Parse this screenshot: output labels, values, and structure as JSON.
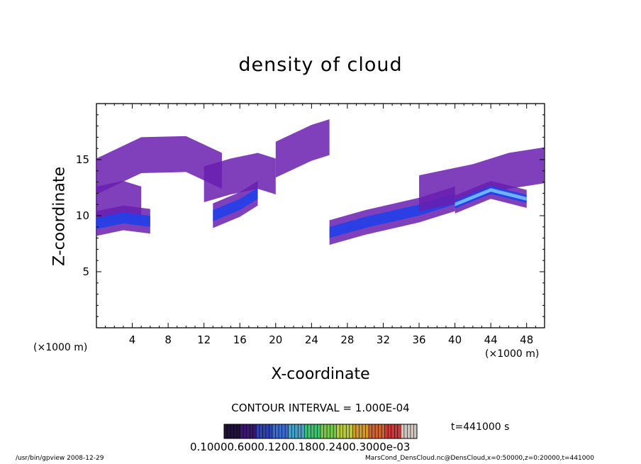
{
  "chart_data": {
    "type": "heatmap",
    "title": "density of cloud",
    "xlabel": "X-coordinate",
    "ylabel": "Z-coordinate",
    "x_unit_left": "(×1000 m)",
    "x_unit_right": "(×1000 m)",
    "xlim": [
      0,
      50
    ],
    "ylim": [
      0,
      20
    ],
    "x_ticks": [
      4,
      8,
      12,
      16,
      20,
      24,
      28,
      32,
      36,
      40,
      44,
      48
    ],
    "y_ticks": [
      5,
      10,
      15
    ],
    "grid": false,
    "contour_interval": "CONTOUR INTERVAL = 1.000E-04",
    "time_label": "t=441000 s",
    "colorbar_labels": "0.10000.6000.1200.1800.2400.3000e-03",
    "colors": {
      "low": "#6a1fb0",
      "mid": "#2040e8",
      "high": "#70b8ff",
      "peak": "#d0f0ff"
    },
    "colorbar_colors": [
      "#20103a",
      "#3a1870",
      "#3044b0",
      "#3a6ad0",
      "#46a0c8",
      "#3fbf70",
      "#76c84a",
      "#b8c840",
      "#d09a30",
      "#d06230",
      "#c83a3a",
      "#d0c8c0"
    ],
    "cloud_regions": [
      {
        "x": [
          0,
          5,
          10,
          14
        ],
        "z": [
          13.5,
          15.4,
          15.5,
          14.0
        ],
        "level": 1
      },
      {
        "x": [
          0,
          3,
          5
        ],
        "z": [
          11,
          11.5,
          11
        ],
        "level": 1
      },
      {
        "x": [
          0,
          3,
          6
        ],
        "z": [
          9.3,
          9.8,
          9.5
        ],
        "level": 2
      },
      {
        "x": [
          12,
          15,
          18,
          20
        ],
        "z": [
          12.8,
          13.5,
          14.0,
          13.5
        ],
        "level": 1
      },
      {
        "x": [
          13,
          16,
          18
        ],
        "z": [
          10,
          11,
          12
        ],
        "level": 2
      },
      {
        "x": [
          20,
          24,
          26
        ],
        "z": [
          15,
          16.5,
          17
        ],
        "level": 1
      },
      {
        "x": [
          26,
          30,
          36,
          40
        ],
        "z": [
          8.5,
          9.4,
          10.5,
          11.5
        ],
        "level": 2
      },
      {
        "x": [
          36,
          42,
          46,
          50
        ],
        "z": [
          12,
          13,
          14,
          14.5
        ],
        "level": 1
      },
      {
        "x": [
          40,
          44,
          48
        ],
        "z": [
          11,
          12.3,
          11.5
        ],
        "level": 3
      }
    ]
  },
  "footer": {
    "left": "/usr/bin/gpview   2008-12-29",
    "right": "MarsCond_DensCloud.nc@DensCloud,x=0:50000,z=0:20000,t=441000"
  }
}
